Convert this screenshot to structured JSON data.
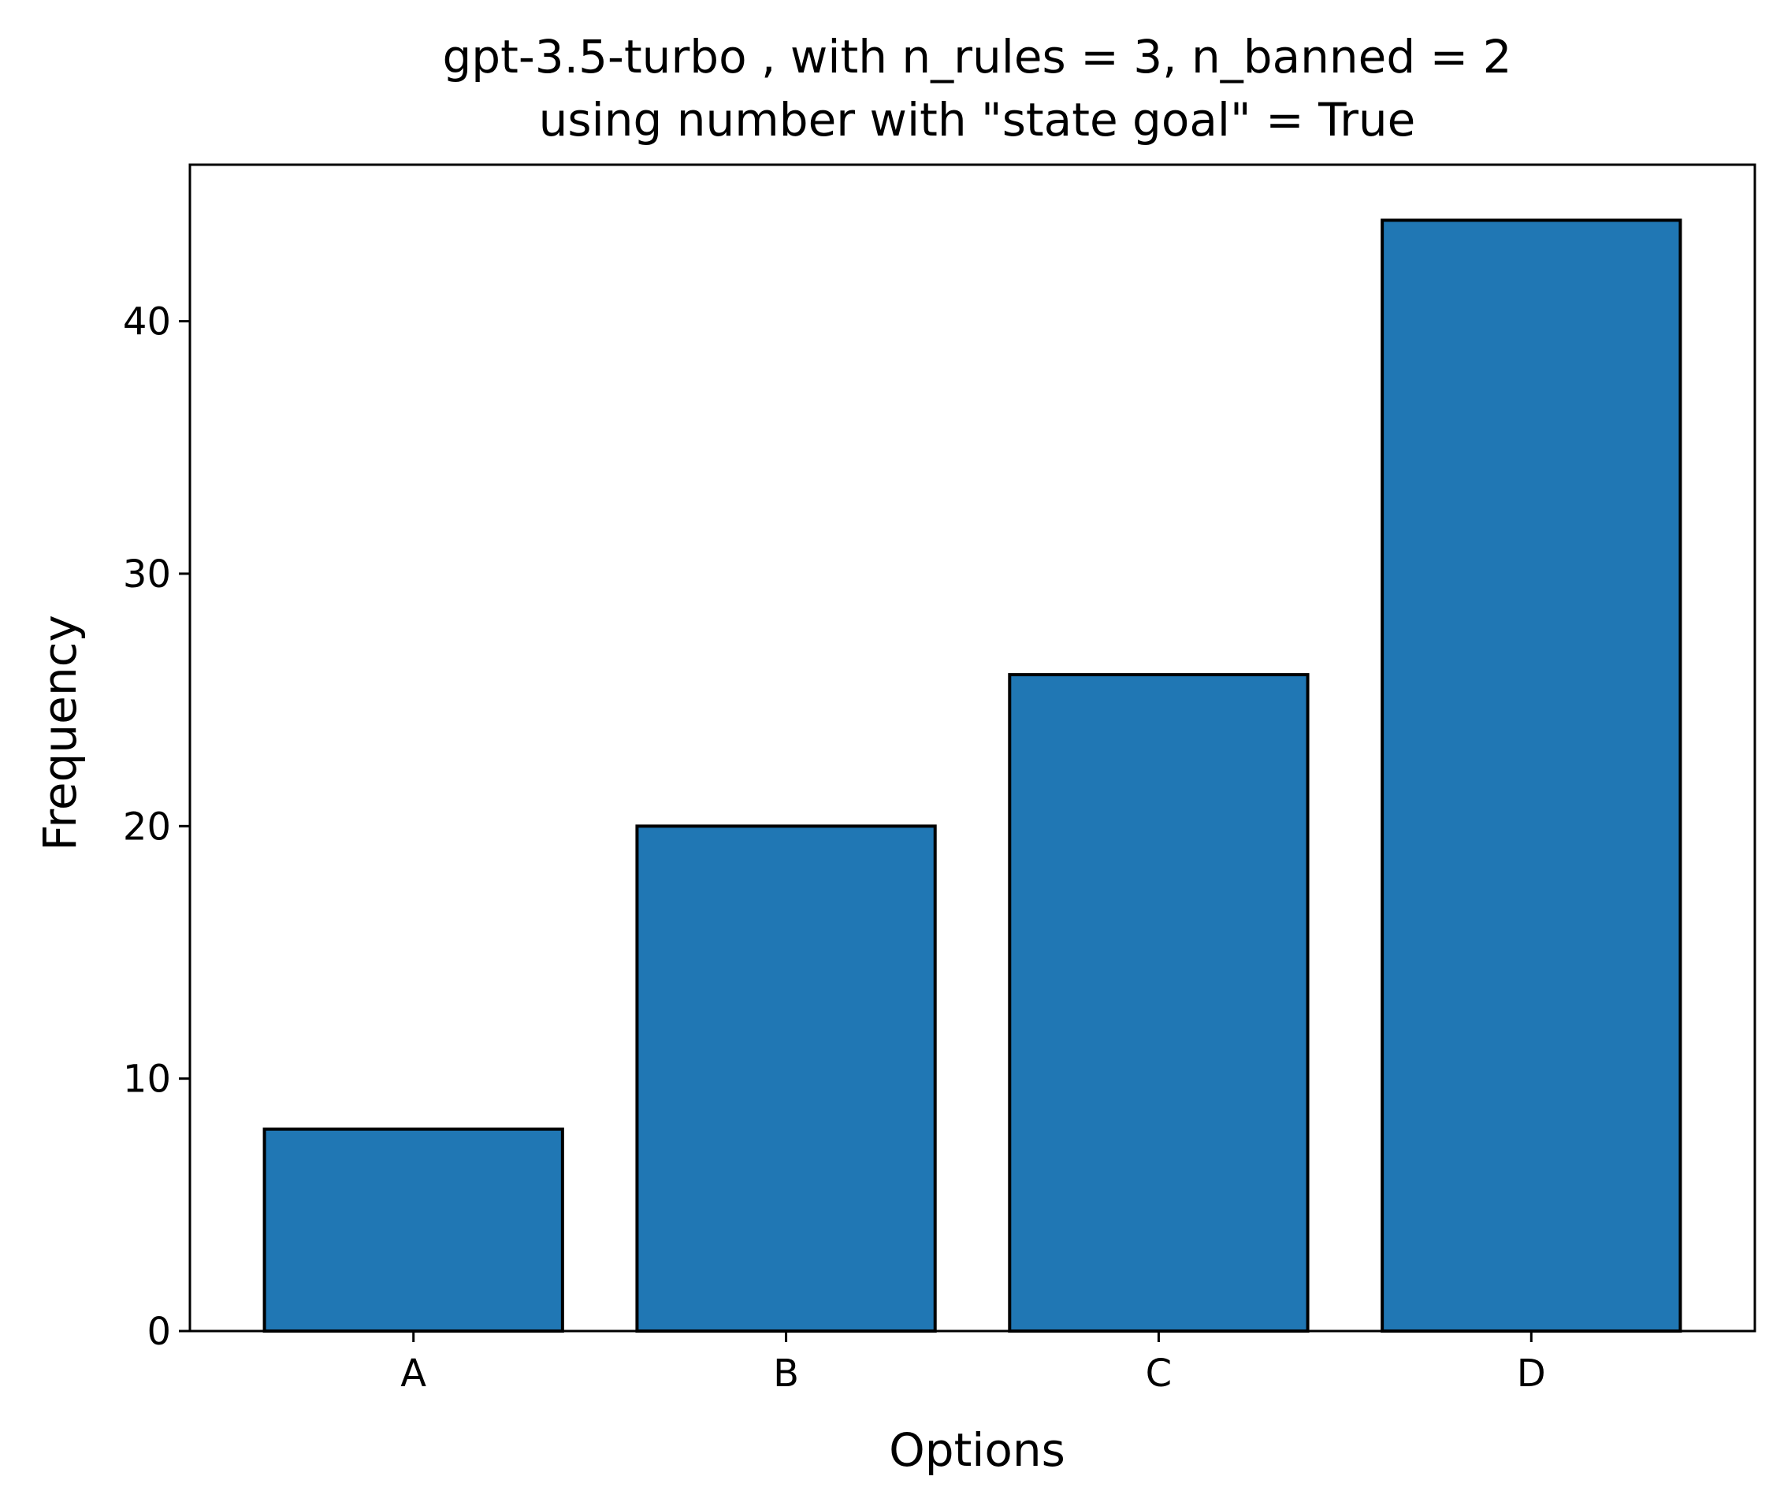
{
  "chart_data": {
    "type": "bar",
    "title": "gpt-3.5-turbo , with n_rules = 3, n_banned = 2",
    "subtitle": "using number with \"state goal\" = True",
    "xlabel": "Options",
    "ylabel": "Frequency",
    "categories": [
      "A",
      "B",
      "C",
      "D"
    ],
    "values": [
      8,
      20,
      26,
      44
    ],
    "ylim": [
      0,
      46.2
    ],
    "yticks": [
      0,
      10,
      20,
      30,
      40
    ],
    "grid": false,
    "colors": {
      "bar_fill": "#2077b4",
      "bar_edge": "#000000",
      "axes": "#000000"
    }
  }
}
